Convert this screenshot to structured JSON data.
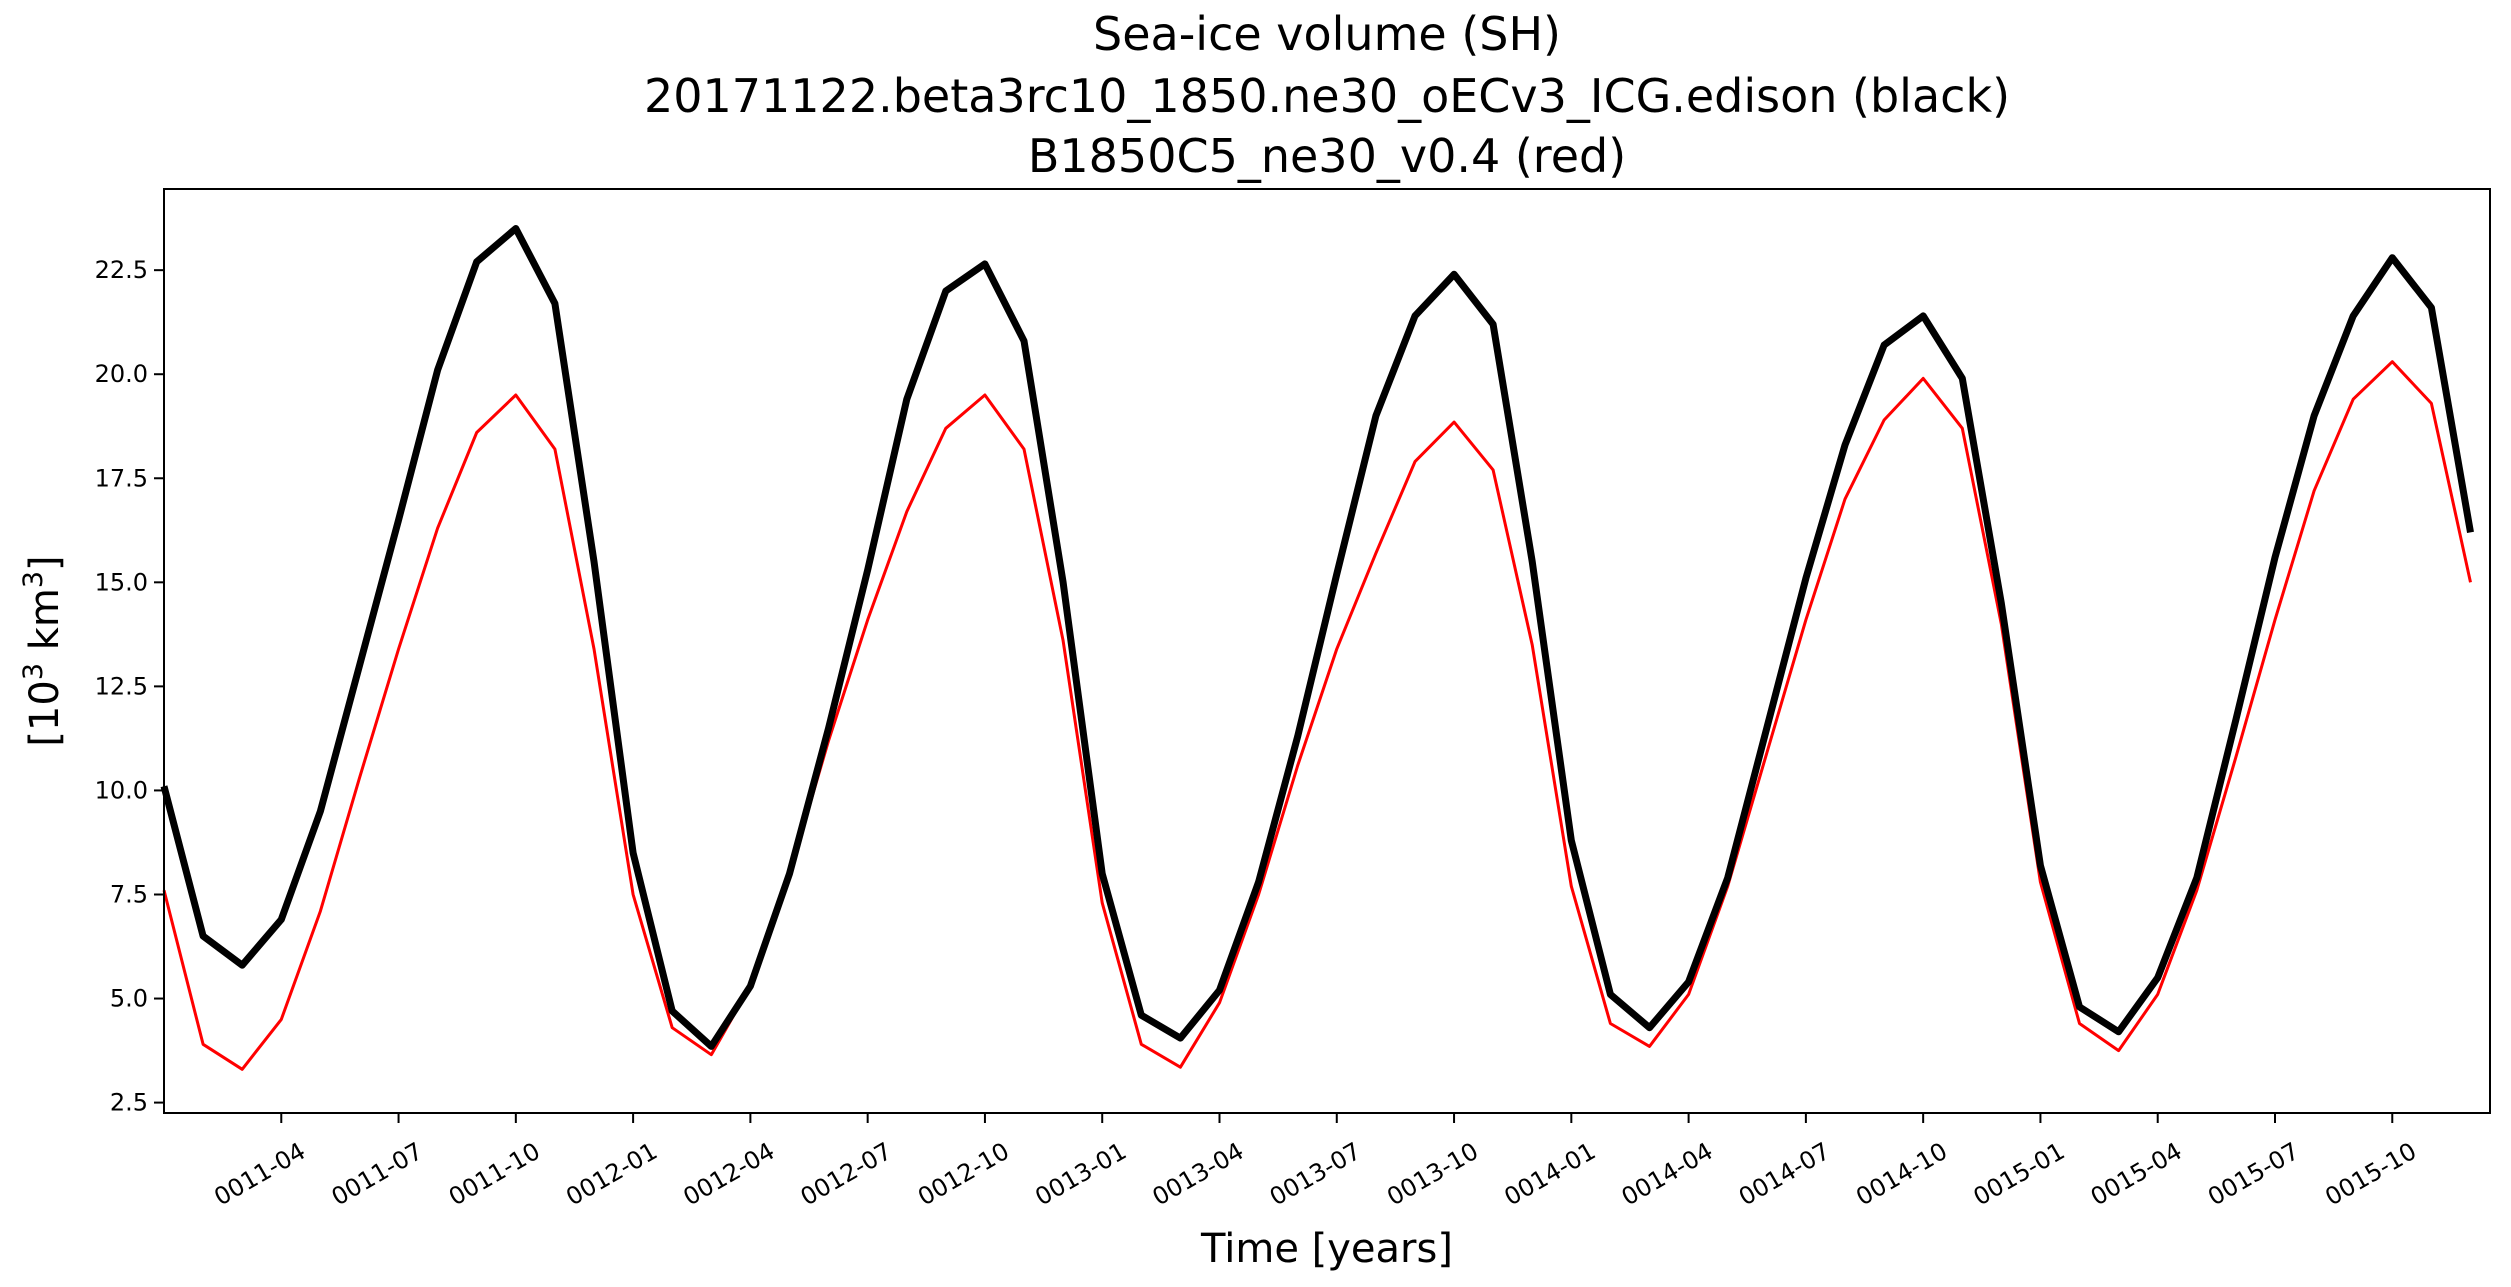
{
  "chart_data": {
    "type": "line",
    "title_lines": [
      "Sea-ice volume (SH)",
      "20171122.beta3rc10_1850.ne30_oECv3_ICG.edison (black)",
      "B1850C5_ne30_v0.4 (red)"
    ],
    "xlabel": "Time [years]",
    "ylabel": {
      "prefix": "[10",
      "sup1": "3",
      "middle": " km",
      "sup2": "3",
      "suffix": "]"
    },
    "x_ticks": [
      "0011-04",
      "0011-07",
      "0011-10",
      "0012-01",
      "0012-04",
      "0012-07",
      "0012-10",
      "0013-01",
      "0013-04",
      "0013-07",
      "0013-10",
      "0014-01",
      "0014-04",
      "0014-07",
      "0014-10",
      "0015-01",
      "0015-04",
      "0015-07",
      "0015-10"
    ],
    "y_ticks": [
      "2.5",
      "5.0",
      "7.5",
      "10.0",
      "12.5",
      "15.0",
      "17.5",
      "20.0",
      "22.5"
    ],
    "ylim": [
      2.25,
      24.45
    ],
    "x_month_range": [
      0,
      59.5
    ],
    "months": [
      0,
      1,
      2,
      3,
      4,
      5,
      6,
      7,
      8,
      9,
      10,
      11,
      12,
      13,
      14,
      15,
      16,
      17,
      18,
      19,
      20,
      21,
      22,
      23,
      24,
      25,
      26,
      27,
      28,
      29,
      30,
      31,
      32,
      33,
      34,
      35,
      36,
      37,
      38,
      39,
      40,
      41,
      42,
      43,
      44,
      45,
      46,
      47,
      48,
      49,
      50,
      51,
      52,
      53,
      54,
      55,
      56,
      57,
      58,
      59
    ],
    "series": [
      {
        "name": "20171122.beta3rc10_1850.ne30_oECv3_ICG.edison",
        "color": "#000000",
        "values": [
          10.1,
          6.5,
          5.8,
          6.9,
          9.5,
          13.0,
          16.5,
          20.1,
          22.7,
          23.5,
          21.7,
          15.5,
          8.5,
          4.7,
          3.85,
          5.3,
          8.0,
          11.5,
          15.3,
          19.4,
          22.0,
          22.65,
          20.8,
          15.0,
          8.0,
          4.6,
          4.05,
          5.2,
          7.8,
          11.3,
          15.2,
          19.0,
          21.4,
          22.4,
          21.2,
          15.5,
          8.8,
          5.1,
          4.3,
          5.4,
          7.9,
          11.5,
          15.1,
          18.3,
          20.7,
          21.4,
          19.9,
          14.5,
          8.2,
          4.8,
          4.2,
          5.5,
          7.9,
          11.7,
          15.6,
          19.0,
          21.4,
          22.8,
          21.6,
          16.2
        ]
      },
      {
        "name": "B1850C5_ne30_v0.4",
        "color": "#ff0000",
        "values": [
          7.6,
          3.9,
          3.3,
          4.5,
          7.1,
          10.3,
          13.4,
          16.3,
          18.6,
          19.5,
          18.2,
          13.4,
          7.5,
          4.3,
          3.65,
          5.3,
          8.0,
          11.2,
          14.1,
          16.7,
          18.7,
          19.5,
          18.2,
          13.6,
          7.3,
          3.9,
          3.35,
          4.9,
          7.5,
          10.6,
          13.4,
          15.7,
          17.9,
          18.85,
          17.7,
          13.5,
          7.7,
          4.4,
          3.85,
          5.1,
          7.7,
          10.9,
          14.1,
          17.0,
          18.9,
          19.9,
          18.7,
          14.0,
          7.8,
          4.4,
          3.75,
          5.1,
          7.6,
          10.8,
          14.1,
          17.2,
          19.4,
          20.3,
          19.3,
          15.0
        ]
      }
    ]
  }
}
